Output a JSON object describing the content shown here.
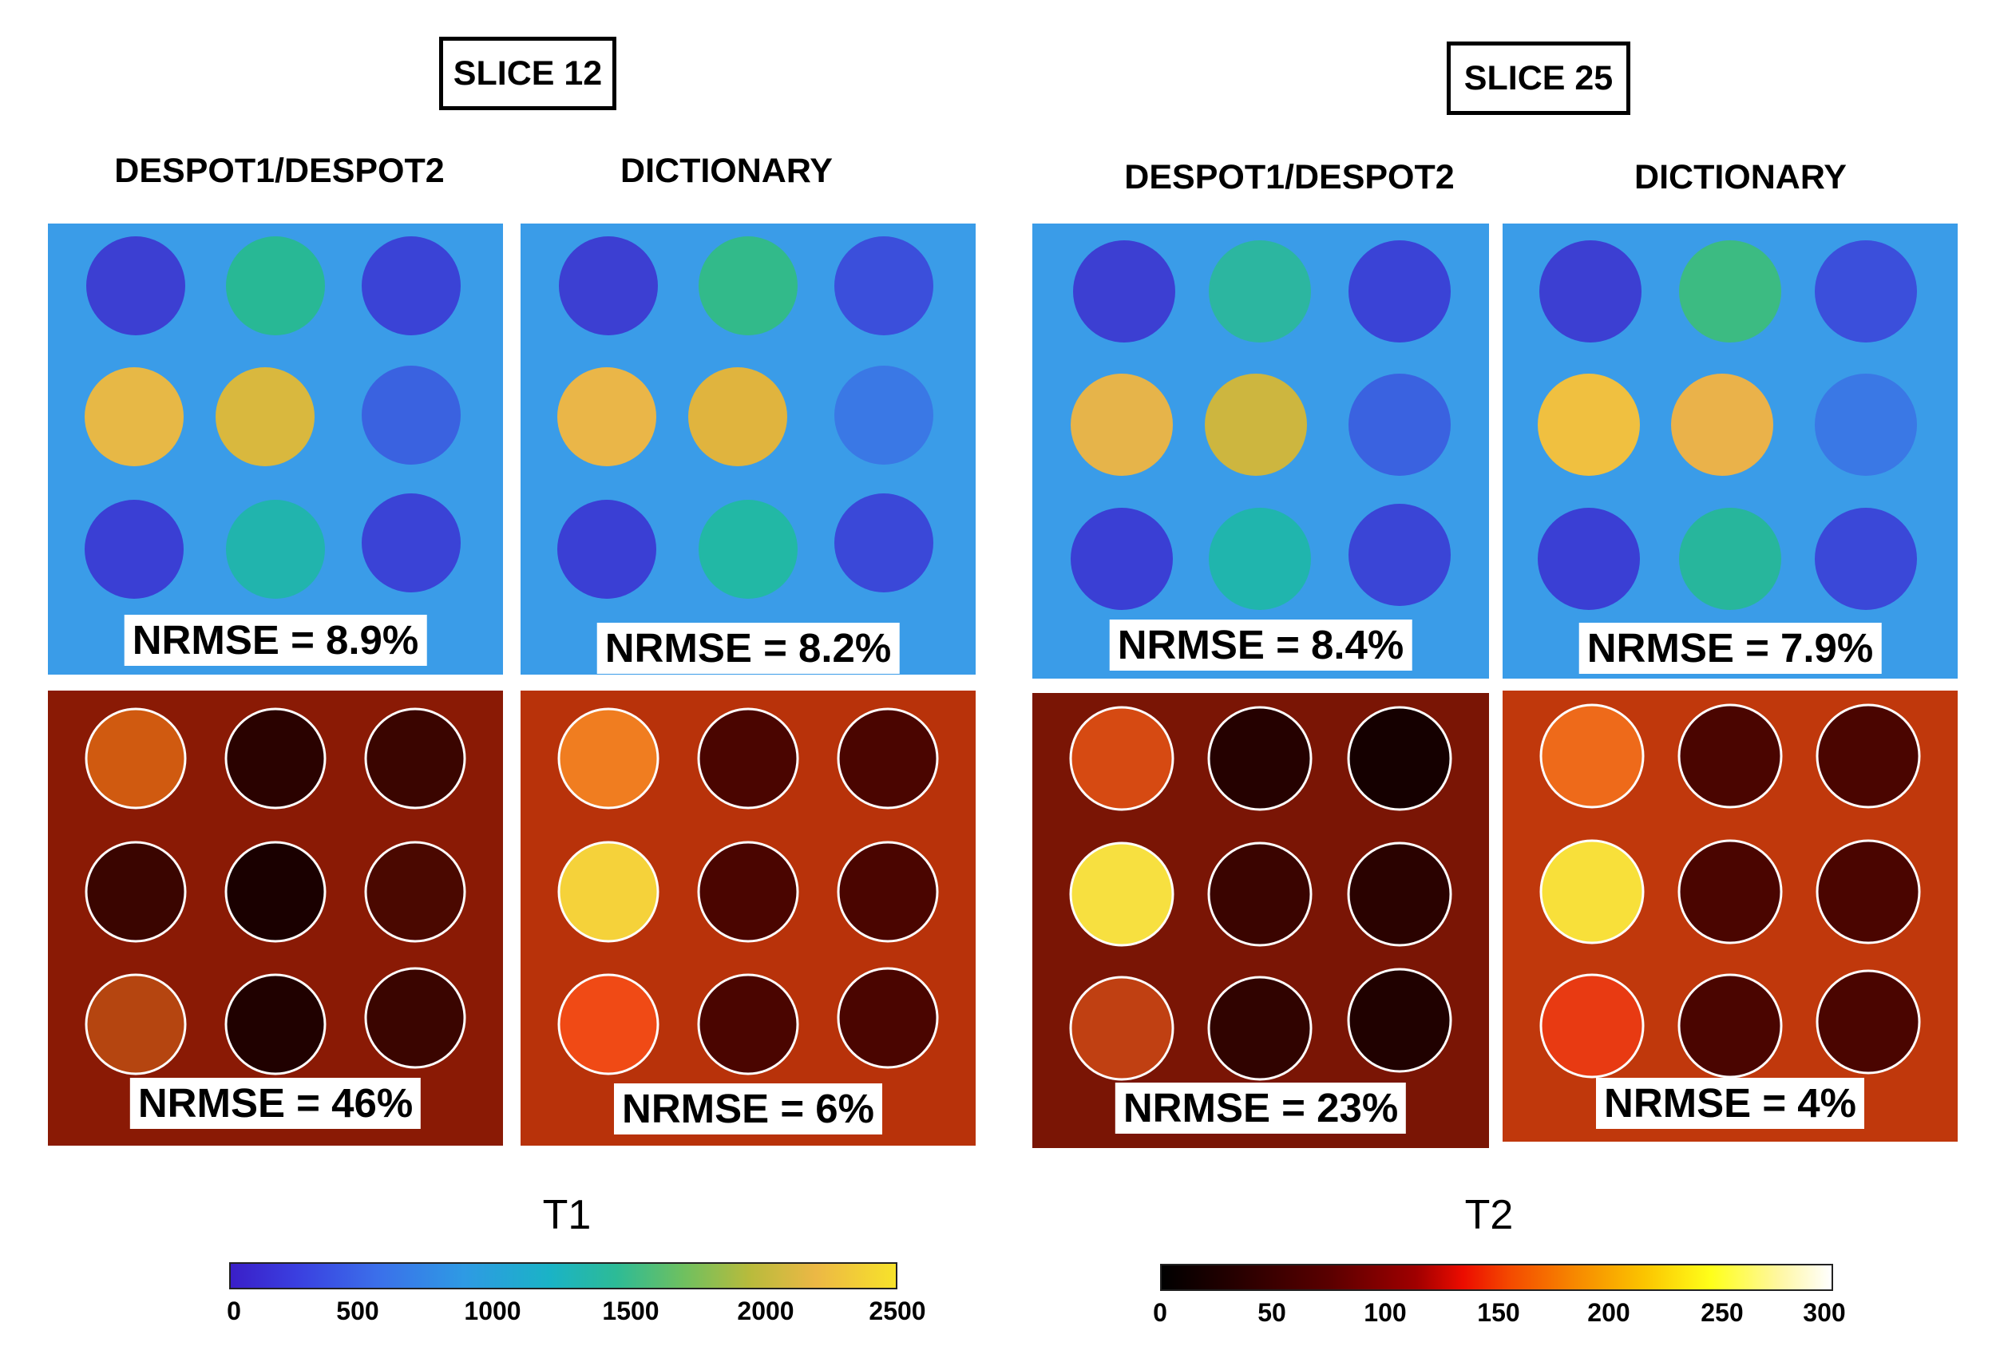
{
  "slices": [
    {
      "label": "SLICE 12",
      "methods": [
        "DESPOT1/DESPOT2",
        "DICTIONARY"
      ],
      "t1_nrmse": [
        "NRMSE = 8.9%",
        "NRMSE = 8.2%"
      ],
      "t2_nrmse": [
        "NRMSE = 46%",
        "NRMSE = 6%"
      ]
    },
    {
      "label": "SLICE 25",
      "methods": [
        "DESPOT1/DESPOT2",
        "DICTIONARY"
      ],
      "t1_nrmse": [
        "NRMSE = 8.4%",
        "NRMSE = 7.9%"
      ],
      "t2_nrmse": [
        "NRMSE = 23%",
        "NRMSE = 4%"
      ]
    }
  ],
  "colorbars": {
    "t1": {
      "title": "T1",
      "ticks": [
        "0",
        "500",
        "1000",
        "1500",
        "2000",
        "2500"
      ]
    },
    "t2": {
      "title": "T2",
      "ticks": [
        "0",
        "50",
        "100",
        "150",
        "200",
        "250",
        "300"
      ]
    }
  },
  "colors": {
    "t1_background": "#3a9ce8",
    "t1_low": "#3c3fd2",
    "t1_mid": "#22b7b0",
    "t1_high": "#e8b545",
    "t2_background": "#a52a0a",
    "t2_dark": "#4a0500",
    "t2_bright": "#ffe94a"
  }
}
